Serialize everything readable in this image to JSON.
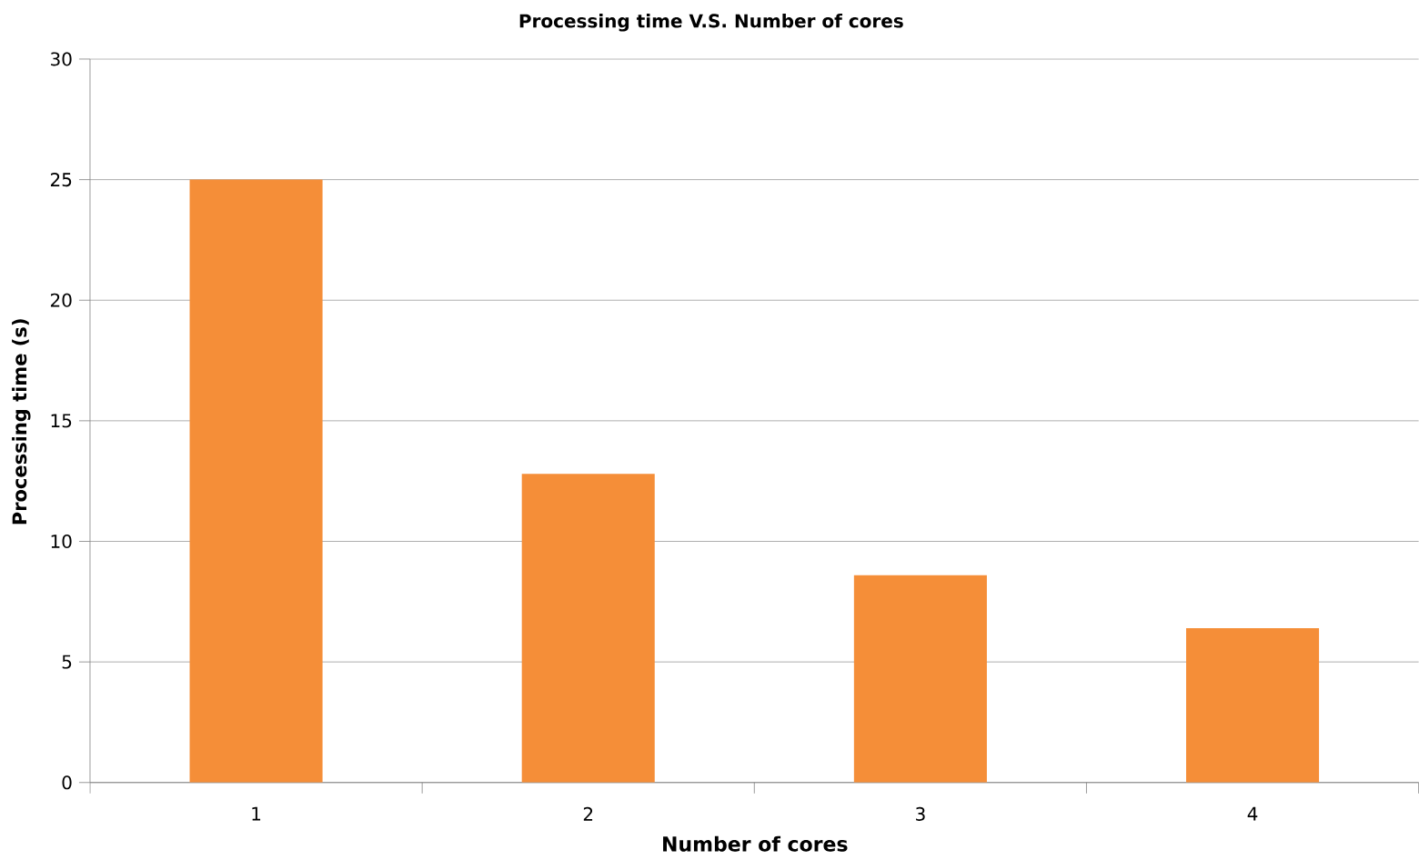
{
  "chart_data": {
    "type": "bar",
    "title": "Processing time V.S. Number of cores",
    "xlabel": "Number of cores",
    "ylabel": "Processing time  (s)",
    "categories": [
      "1",
      "2",
      "3",
      "4"
    ],
    "values": [
      25,
      12.8,
      8.6,
      6.4
    ],
    "color": "#f58e38",
    "ylim": [
      0,
      30
    ],
    "yticks": [
      0,
      5,
      10,
      15,
      20,
      25,
      30
    ],
    "grid": "y"
  }
}
